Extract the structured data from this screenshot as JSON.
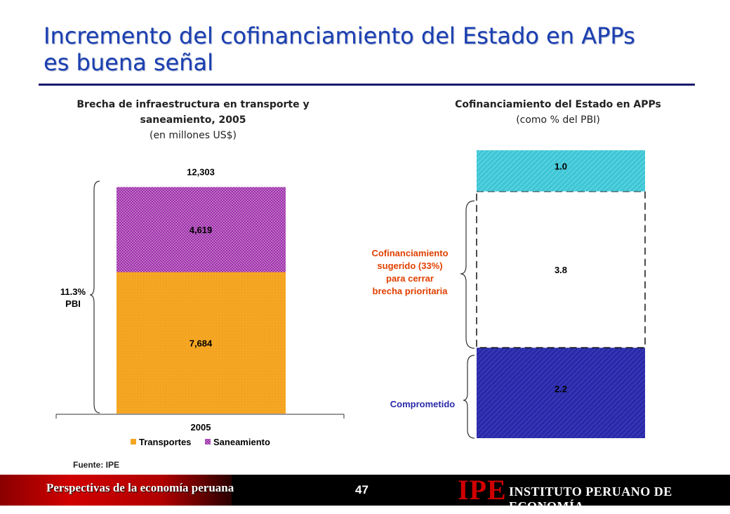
{
  "slide": {
    "title_line1": "Incremento del cofinanciamiento del Estado en APPs",
    "title_line2": "es buena señal",
    "source": "Fuente: IPE",
    "footer_text": "Perspectivas de la economía peruana",
    "page_number": "47",
    "logo_mark": "IPE",
    "logo_text": "INSTITUTO PERUANO DE ECONOMÍA"
  },
  "colors": {
    "title": "#1a3fb0",
    "transportes": "#f5a623",
    "saneamiento": "#9b30a8",
    "cofin_top": "#3ec6d6",
    "comprometido": "#2a2aa8",
    "annotation_red": "#e04000",
    "annotation_blue": "#2a2aa8"
  },
  "chart_data": [
    {
      "type": "bar",
      "stacked": true,
      "title_line1": "Brecha de infraestructura  en transporte y",
      "title_line2": "saneamiento, 2005",
      "subtitle": "(en millones US$)",
      "categories": [
        "2005"
      ],
      "series": [
        {
          "name": "Transportes",
          "values": [
            7684
          ],
          "label": "7,684"
        },
        {
          "name": "Saneamiento",
          "values": [
            4619
          ],
          "label": "4,619"
        }
      ],
      "total": 12303,
      "total_label": "12,303",
      "ylim": [
        0,
        13500
      ],
      "legend": "bottom",
      "annotation": {
        "line1": "11.3%",
        "line2": "PBI"
      }
    },
    {
      "type": "bar",
      "stacked": true,
      "title": "Cofinanciamiento del Estado en APPs",
      "subtitle": "(como % del PBI)",
      "series": [
        {
          "values": [
            2.2
          ],
          "label": "2.2"
        },
        {
          "values": [
            3.8
          ],
          "label": "3.8"
        },
        {
          "values": [
            1.0
          ],
          "label": "1.0"
        }
      ],
      "ylim": [
        0,
        7.0
      ],
      "annotations": {
        "suggested": [
          "Cofinanciamiento",
          "sugerido (33%)",
          "para cerrar",
          "brecha prioritaria"
        ],
        "committed": "Comprometido"
      }
    }
  ]
}
